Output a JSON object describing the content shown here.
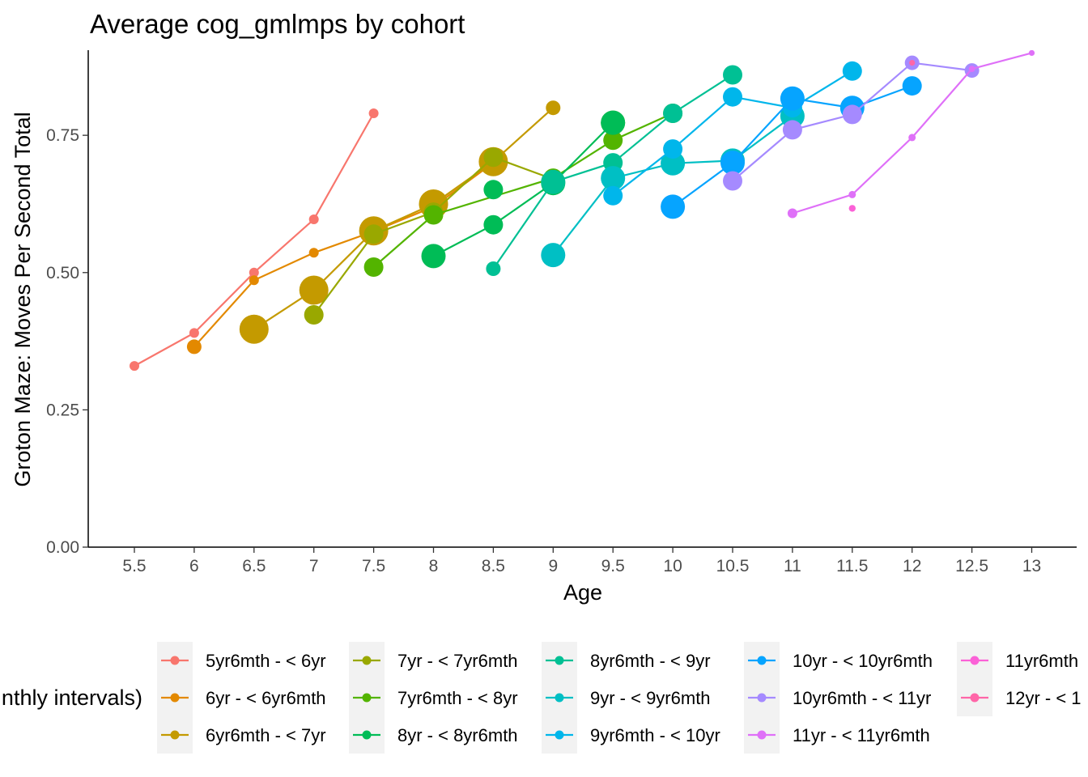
{
  "chart_data": {
    "type": "line",
    "title": "Average cog_gmlmps by cohort",
    "xlabel": "Age",
    "ylabel": "Groton Maze: Moves Per Second Total",
    "xlim": [
      5.4,
      13.2
    ],
    "ylim": [
      0,
      0.9
    ],
    "x_ticks": [
      "5.5",
      "6",
      "6.5",
      "7",
      "7.5",
      "8",
      "8.5",
      "9",
      "9.5",
      "10",
      "10.5",
      "11",
      "11.5",
      "12",
      "12.5",
      "13"
    ],
    "y_ticks": [
      "0.00",
      "0.25",
      "0.50",
      "0.75"
    ],
    "grid": false,
    "legend_position": "bottom",
    "legend_title": "nthly intervals)",
    "point_size_encodes": "count",
    "series": [
      {
        "name": "5yr6mth - < 6yr",
        "color": "#F8766D",
        "points": [
          [
            5.5,
            0.33,
            1
          ],
          [
            6,
            0.39,
            1
          ],
          [
            6.5,
            0.5,
            1
          ],
          [
            7,
            0.597,
            1
          ],
          [
            7.5,
            0.79,
            1
          ]
        ],
        "extra_points": []
      },
      {
        "name": "6yr - < 6yr6mth",
        "color": "#E38900",
        "points": [
          [
            6,
            0.365,
            2
          ],
          [
            6.5,
            0.486,
            1
          ],
          [
            7,
            0.536,
            1
          ],
          [
            7.5,
            0.575,
            2
          ],
          [
            8,
            0.62,
            2
          ],
          [
            8.5,
            0.7,
            2
          ]
        ],
        "extra_points": []
      },
      {
        "name": "6yr6mth - < 7yr",
        "color": "#C49A00",
        "points": [
          [
            6.5,
            0.397,
            5
          ],
          [
            7,
            0.468,
            5
          ],
          [
            7.5,
            0.576,
            5
          ],
          [
            8,
            0.625,
            5
          ],
          [
            8.5,
            0.702,
            5
          ],
          [
            9,
            0.8,
            2
          ]
        ],
        "extra_points": []
      },
      {
        "name": "7yr - < 7yr6mth",
        "color": "#99A800",
        "points": [
          [
            7,
            0.423,
            3
          ],
          [
            7.5,
            0.57,
            3
          ],
          [
            8,
            0.61,
            3
          ],
          [
            8.5,
            0.71,
            3
          ],
          [
            9,
            0.67,
            3
          ]
        ],
        "extra_points": []
      },
      {
        "name": "7yr6mth - < 8yr",
        "color": "#53B400",
        "points": [
          [
            7.5,
            0.51,
            3
          ],
          [
            8,
            0.605,
            3
          ],
          [
            9,
            0.672,
            3
          ],
          [
            9.5,
            0.741,
            3
          ],
          [
            10,
            0.79,
            3
          ]
        ],
        "extra_points": [
          [
            9.5,
            0.773,
            4
          ]
        ]
      },
      {
        "name": "8yr - < 8yr6mth",
        "color": "#00BC56",
        "points": [
          [
            8,
            0.53,
            4
          ],
          [
            8.5,
            0.587,
            3
          ],
          [
            9,
            0.663,
            4
          ],
          [
            9.5,
            0.773,
            4
          ]
        ],
        "extra_points": [
          [
            8.5,
            0.651,
            3
          ]
        ]
      },
      {
        "name": "8yr6mth - < 9yr",
        "color": "#00C094",
        "points": [
          [
            8.5,
            0.507,
            2
          ],
          [
            9,
            0.665,
            4
          ],
          [
            9.5,
            0.7,
            3
          ],
          [
            10,
            0.79,
            3
          ],
          [
            10.5,
            0.86,
            3
          ]
        ],
        "extra_points": []
      },
      {
        "name": "9yr - < 9yr6mth",
        "color": "#00BFC4",
        "points": [
          [
            9,
            0.532,
            4
          ],
          [
            9.5,
            0.672,
            4
          ],
          [
            10,
            0.699,
            4
          ],
          [
            10.5,
            0.704,
            4
          ],
          [
            11,
            0.785,
            4
          ]
        ],
        "extra_points": []
      },
      {
        "name": "9yr6mth - < 10yr",
        "color": "#00B6EB",
        "points": [
          [
            9.5,
            0.64,
            3
          ],
          [
            10,
            0.725,
            3
          ],
          [
            10.5,
            0.82,
            3
          ],
          [
            11,
            0.8,
            3
          ],
          [
            11.5,
            0.867,
            3
          ]
        ],
        "extra_points": []
      },
      {
        "name": "10yr - < 10yr6mth",
        "color": "#06A4FF",
        "points": [
          [
            10,
            0.62,
            4
          ],
          [
            10.5,
            0.7,
            4
          ],
          [
            11,
            0.817,
            4
          ],
          [
            11.5,
            0.8,
            4
          ],
          [
            12,
            0.84,
            3
          ]
        ],
        "extra_points": []
      },
      {
        "name": "10yr6mth - < 11yr",
        "color": "#A58AFF",
        "points": [
          [
            10.5,
            0.667,
            3
          ],
          [
            11,
            0.76,
            3
          ],
          [
            11.5,
            0.788,
            3
          ],
          [
            12,
            0.882,
            2
          ],
          [
            12.5,
            0.868,
            2
          ]
        ],
        "extra_points": []
      },
      {
        "name": "11yr - < 11yr6mth",
        "color": "#DF70F8",
        "points": [
          [
            11,
            0.608,
            1
          ],
          [
            11.5,
            0.642,
            0.5
          ],
          [
            12,
            0.746,
            0.5
          ],
          [
            12.5,
            0.871,
            0.3
          ],
          [
            13,
            0.9,
            0.2
          ]
        ],
        "extra_points": []
      },
      {
        "name": "11yr6mth",
        "color": "#FB61D7",
        "points": [
          [
            11.5,
            0.617,
            0.4
          ]
        ],
        "extra_points": []
      },
      {
        "name": "12yr - < 1",
        "color": "#FF66A8",
        "points": [
          [
            12,
            0.882,
            0.2
          ]
        ],
        "extra_points": []
      }
    ]
  }
}
